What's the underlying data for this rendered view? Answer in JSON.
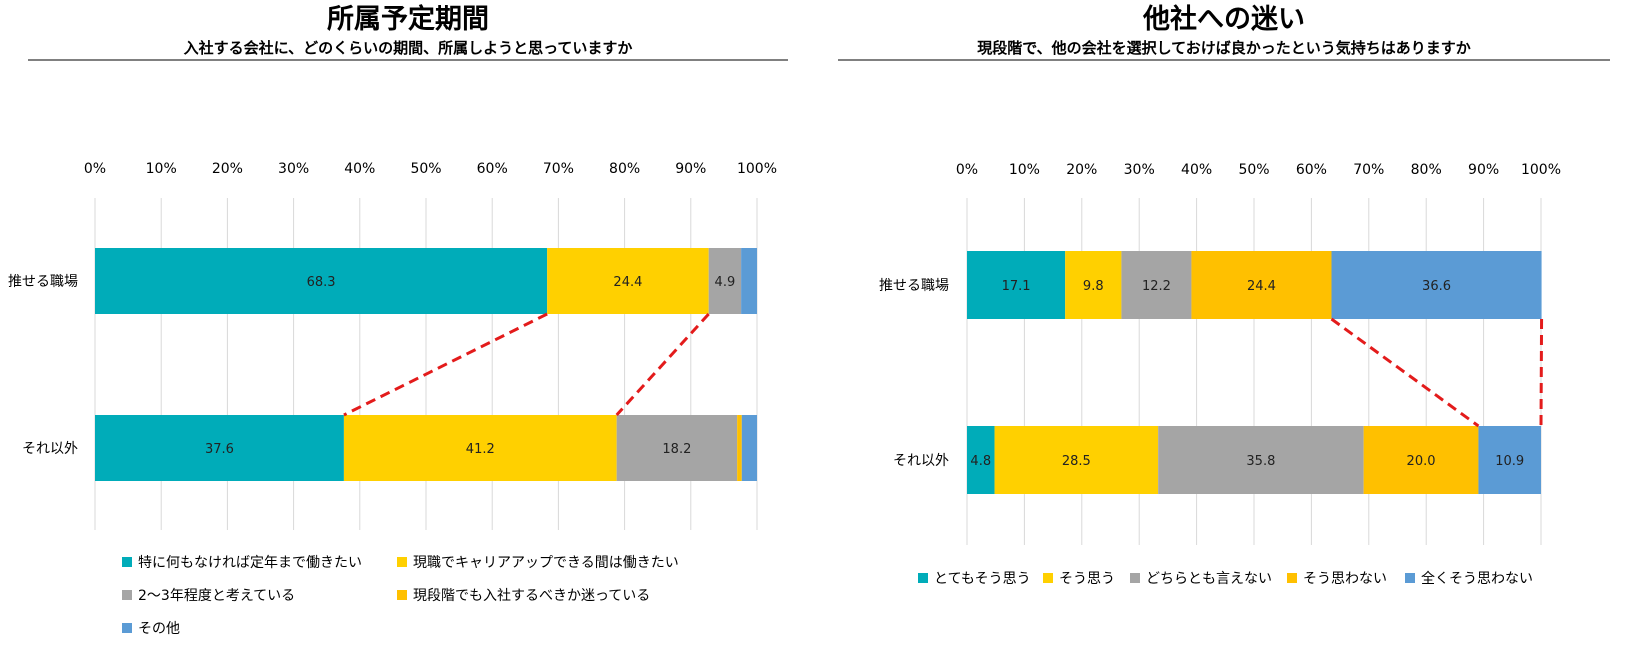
{
  "colors": {
    "teal": "#00ACB9",
    "yellow": "#FFD000",
    "gray": "#A5A5A5",
    "amber": "#FFC000",
    "blue": "#5B9BD5",
    "connector": "#E31B1B",
    "grid": "#D9D9D9"
  },
  "chart_data": [
    {
      "type": "bar",
      "orientation": "horizontal",
      "stacked": "percent",
      "title": "所属予定期間",
      "subtitle": "入社する会社に、どのくらいの期間、所属しようと思っていますか",
      "categories": [
        "推せる職場",
        "それ以外"
      ],
      "xlim": [
        0,
        100
      ],
      "xticks": [
        "0%",
        "10%",
        "20%",
        "30%",
        "40%",
        "50%",
        "60%",
        "70%",
        "80%",
        "90%",
        "100%"
      ],
      "series": [
        {
          "name": "特に何もなければ定年まで働きたい",
          "values": [
            68.3,
            37.6
          ],
          "labels": [
            "68.3",
            "37.6"
          ],
          "color": "#00ACB9"
        },
        {
          "name": "現職でキャリアアップできる間は働きたい",
          "values": [
            24.4,
            41.2
          ],
          "labels": [
            "24.4",
            "41.2"
          ],
          "color": "#FFD000"
        },
        {
          "name": "2～3年程度と考えている",
          "values": [
            4.9,
            18.2
          ],
          "labels": [
            "4.9",
            "18.2"
          ],
          "color": "#A5A5A5"
        },
        {
          "name": "現段階でも入社するべきか迷っている",
          "values": [
            0,
            0.7
          ],
          "labels": [
            "",
            ""
          ],
          "color": "#FFC000"
        },
        {
          "name": "その他",
          "values": [
            2.4,
            2.3
          ],
          "labels": [
            "",
            ""
          ],
          "color": "#5B9BD5"
        }
      ],
      "connectors": [
        [
          0,
          1
        ],
        [
          1,
          2
        ]
      ],
      "legend_position": "bottom"
    },
    {
      "type": "bar",
      "orientation": "horizontal",
      "stacked": "percent",
      "title": "他社への迷い",
      "subtitle": "現段階で、他の会社を選択しておけば良かったという気持ちはありますか",
      "categories": [
        "推せる職場",
        "それ以外"
      ],
      "xlim": [
        0,
        100
      ],
      "xticks": [
        "0%",
        "10%",
        "20%",
        "30%",
        "40%",
        "50%",
        "60%",
        "70%",
        "80%",
        "90%",
        "100%"
      ],
      "series": [
        {
          "name": "とてもそう思う",
          "values": [
            17.1,
            4.8
          ],
          "labels": [
            "17.1",
            "4.8"
          ],
          "color": "#00ACB9"
        },
        {
          "name": "そう思う",
          "values": [
            9.8,
            28.5
          ],
          "labels": [
            "9.8",
            "28.5"
          ],
          "color": "#FFD000"
        },
        {
          "name": "どちらとも言えない",
          "values": [
            12.2,
            35.8
          ],
          "labels": [
            "12.2",
            "35.8"
          ],
          "color": "#A5A5A5"
        },
        {
          "name": "そう思わない",
          "values": [
            24.4,
            20.0
          ],
          "labels": [
            "24.4",
            "20.0"
          ],
          "color": "#FFC000"
        },
        {
          "name": "全くそう思わない",
          "values": [
            36.6,
            10.9
          ],
          "labels": [
            "36.6",
            "10.9"
          ],
          "color": "#5B9BD5"
        }
      ],
      "connectors": [
        [
          3,
          4
        ],
        [
          4,
          5
        ]
      ],
      "legend_position": "bottom"
    }
  ]
}
